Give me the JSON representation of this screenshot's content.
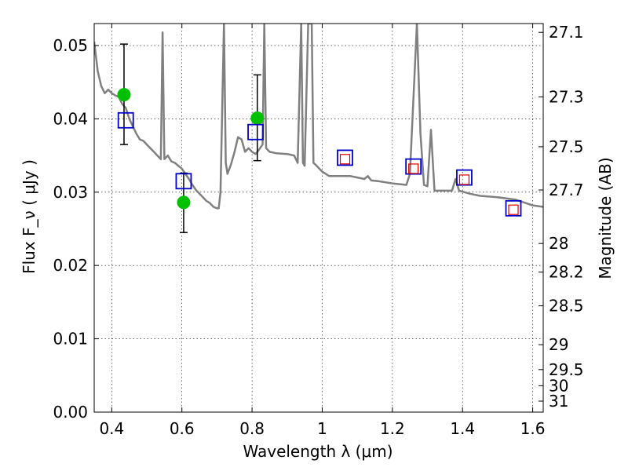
{
  "chart_data": {
    "type": "scatter",
    "xlabel": "Wavelength  λ (μm)",
    "ylabel": "Flux  F_ν  ( μJy )",
    "ylabel_right": "Magnitude (AB)",
    "xlim": [
      0.35,
      1.63
    ],
    "ylim": [
      0.0,
      0.053
    ],
    "grid": true,
    "x_ticks": [
      0.4,
      0.6,
      0.8,
      1.0,
      1.2,
      1.4,
      1.6
    ],
    "x_tick_labels": [
      "0.4",
      "0.6",
      "0.8",
      "1",
      "1.2",
      "1.4",
      "1.6"
    ],
    "y_ticks": [
      0.0,
      0.01,
      0.02,
      0.03,
      0.04,
      0.05
    ],
    "y_tick_labels": [
      "0.00",
      "0.01",
      "0.02",
      "0.03",
      "0.04",
      "0.05"
    ],
    "right_ticks": [
      {
        "label": "27.1",
        "flux": 0.0518
      },
      {
        "label": "27.3",
        "flux": 0.043
      },
      {
        "label": "27.5",
        "flux": 0.0362
      },
      {
        "label": "27.7",
        "flux": 0.0303
      },
      {
        "label": "28",
        "flux": 0.023
      },
      {
        "label": "28.2",
        "flux": 0.0191
      },
      {
        "label": "28.5",
        "flux": 0.0145
      },
      {
        "label": "29",
        "flux": 0.0092
      },
      {
        "label": "29.5",
        "flux": 0.0058
      },
      {
        "label": "30",
        "flux": 0.0036
      },
      {
        "label": "31",
        "flux": 0.0015
      }
    ],
    "spectrum": {
      "color": "#808080",
      "points": [
        [
          0.35,
          0.0505
        ],
        [
          0.36,
          0.0465
        ],
        [
          0.37,
          0.0445
        ],
        [
          0.38,
          0.0435
        ],
        [
          0.39,
          0.044
        ],
        [
          0.4,
          0.0435
        ],
        [
          0.41,
          0.0432
        ],
        [
          0.42,
          0.043
        ],
        [
          0.43,
          0.042
        ],
        [
          0.44,
          0.0415
        ],
        [
          0.45,
          0.04
        ],
        [
          0.46,
          0.039
        ],
        [
          0.47,
          0.038
        ],
        [
          0.48,
          0.0372
        ],
        [
          0.49,
          0.037
        ],
        [
          0.5,
          0.0365
        ],
        [
          0.51,
          0.036
        ],
        [
          0.52,
          0.0355
        ],
        [
          0.53,
          0.035
        ],
        [
          0.54,
          0.0345
        ],
        [
          0.545,
          0.0518
        ],
        [
          0.55,
          0.0345
        ],
        [
          0.56,
          0.035
        ],
        [
          0.57,
          0.0342
        ],
        [
          0.58,
          0.034
        ],
        [
          0.6,
          0.0332
        ],
        [
          0.61,
          0.0325
        ],
        [
          0.62,
          0.0318
        ],
        [
          0.63,
          0.031
        ],
        [
          0.64,
          0.0303
        ],
        [
          0.65,
          0.0298
        ],
        [
          0.66,
          0.0293
        ],
        [
          0.67,
          0.0288
        ],
        [
          0.68,
          0.0285
        ],
        [
          0.69,
          0.028
        ],
        [
          0.7,
          0.0278
        ],
        [
          0.705,
          0.0278
        ],
        [
          0.71,
          0.03
        ],
        [
          0.72,
          0.053
        ],
        [
          0.725,
          0.034
        ],
        [
          0.73,
          0.0325
        ],
        [
          0.74,
          0.0338
        ],
        [
          0.75,
          0.0355
        ],
        [
          0.76,
          0.0375
        ],
        [
          0.77,
          0.0372
        ],
        [
          0.78,
          0.0355
        ],
        [
          0.79,
          0.036
        ],
        [
          0.8,
          0.0355
        ],
        [
          0.81,
          0.0352
        ],
        [
          0.82,
          0.0358
        ],
        [
          0.83,
          0.0365
        ],
        [
          0.835,
          0.053
        ],
        [
          0.84,
          0.036
        ],
        [
          0.85,
          0.0355
        ],
        [
          0.87,
          0.0353
        ],
        [
          0.9,
          0.0352
        ],
        [
          0.92,
          0.035
        ],
        [
          0.93,
          0.034
        ],
        [
          0.94,
          0.053
        ],
        [
          0.945,
          0.034
        ],
        [
          0.95,
          0.0336
        ],
        [
          0.96,
          0.053
        ],
        [
          0.97,
          0.053
        ],
        [
          0.975,
          0.034
        ],
        [
          0.98,
          0.0338
        ],
        [
          1.0,
          0.0328
        ],
        [
          1.02,
          0.0322
        ],
        [
          1.05,
          0.0322
        ],
        [
          1.08,
          0.0322
        ],
        [
          1.1,
          0.032
        ],
        [
          1.12,
          0.0318
        ],
        [
          1.13,
          0.0322
        ],
        [
          1.14,
          0.0316
        ],
        [
          1.16,
          0.0315
        ],
        [
          1.2,
          0.0312
        ],
        [
          1.24,
          0.031
        ],
        [
          1.25,
          0.0325
        ],
        [
          1.27,
          0.053
        ],
        [
          1.28,
          0.038
        ],
        [
          1.29,
          0.031
        ],
        [
          1.3,
          0.0308
        ],
        [
          1.31,
          0.0385
        ],
        [
          1.32,
          0.0302
        ],
        [
          1.35,
          0.0302
        ],
        [
          1.37,
          0.0302
        ],
        [
          1.38,
          0.0318
        ],
        [
          1.39,
          0.0302
        ],
        [
          1.42,
          0.0298
        ],
        [
          1.45,
          0.0295
        ],
        [
          1.5,
          0.0293
        ],
        [
          1.55,
          0.029
        ],
        [
          1.6,
          0.0282
        ],
        [
          1.63,
          0.028
        ]
      ]
    },
    "series": [
      {
        "marker": "circle",
        "color": "#00c000",
        "x": [
          0.435,
          0.605,
          0.815
        ],
        "y": [
          0.0433,
          0.0286,
          0.0401
        ],
        "yerr_low": [
          0.0365,
          0.0245,
          0.0343
        ],
        "yerr_high": [
          0.0502,
          0.0326,
          0.046
        ]
      },
      {
        "marker": "square-open",
        "color": "#0000cc",
        "x": [
          0.44,
          0.605,
          0.81,
          1.065,
          1.26,
          1.405,
          1.545
        ],
        "y": [
          0.0398,
          0.0315,
          0.0382,
          0.0347,
          0.0335,
          0.032,
          0.0278
        ]
      },
      {
        "marker": "square-open",
        "color": "#e00000",
        "x": [
          1.065,
          1.26,
          1.405,
          1.545
        ],
        "y": [
          0.0345,
          0.0332,
          0.0317,
          0.0276
        ]
      }
    ]
  }
}
